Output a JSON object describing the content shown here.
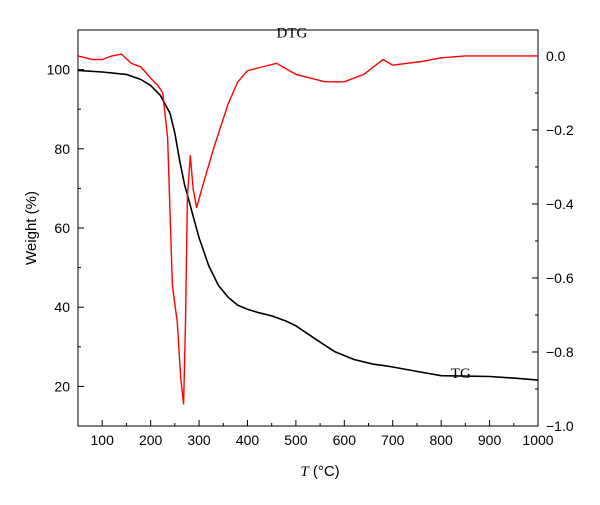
{
  "chart_data": {
    "type": "line",
    "title": "",
    "xlabel": "T (°C)",
    "ylabel_left": "Weight (%)",
    "ylabel_right": "",
    "xlim": [
      50,
      1000
    ],
    "ylim_left": [
      10,
      110
    ],
    "ylim_right": [
      -1.0,
      0.07
    ],
    "xticks": [
      100,
      200,
      300,
      400,
      500,
      600,
      700,
      800,
      900,
      1000
    ],
    "yticks_left": [
      20,
      40,
      60,
      80,
      100
    ],
    "yticks_right": [
      0.0,
      -0.2,
      -0.4,
      -0.6,
      -0.8,
      -1.0
    ],
    "xtick_labels": [
      "100",
      "200",
      "300",
      "400",
      "500",
      "600",
      "700",
      "800",
      "900",
      "1000"
    ],
    "ytick_left_labels": [
      "20",
      "40",
      "60",
      "80",
      "100"
    ],
    "ytick_right_labels": [
      "0.0",
      "−0.2",
      "−0.4",
      "−0.6",
      "−0.8",
      "−1.0"
    ],
    "grid": false,
    "series": [
      {
        "name": "TG",
        "axis": "left",
        "color": "#000000",
        "x": [
          50,
          100,
          150,
          180,
          200,
          220,
          240,
          250,
          260,
          270,
          280,
          290,
          300,
          320,
          340,
          360,
          380,
          400,
          420,
          450,
          480,
          500,
          540,
          580,
          620,
          660,
          680,
          700,
          750,
          800,
          850,
          900,
          950,
          1000
        ],
        "y": [
          99.8,
          99.4,
          98.8,
          97.5,
          96.0,
          93.5,
          89.0,
          84.0,
          77.0,
          71.0,
          66.5,
          62.0,
          57.5,
          50.5,
          45.5,
          42.5,
          40.5,
          39.5,
          38.7,
          37.8,
          36.5,
          35.3,
          32.0,
          28.8,
          26.8,
          25.6,
          25.3,
          24.9,
          23.8,
          22.7,
          22.6,
          22.5,
          22.1,
          21.6
        ]
      },
      {
        "name": "DTG",
        "axis": "right",
        "color": "#ff0000",
        "x": [
          50,
          80,
          100,
          120,
          140,
          160,
          180,
          200,
          215,
          225,
          235,
          245,
          250,
          255,
          262,
          268,
          272,
          276,
          282,
          288,
          295,
          310,
          330,
          360,
          380,
          400,
          430,
          460,
          500,
          530,
          560,
          600,
          640,
          670,
          680,
          700,
          730,
          760,
          800,
          850,
          900,
          950,
          1000
        ],
        "y": [
          0.0,
          -0.01,
          -0.01,
          0.0,
          0.005,
          -0.02,
          -0.03,
          -0.06,
          -0.08,
          -0.1,
          -0.22,
          -0.62,
          -0.67,
          -0.72,
          -0.87,
          -0.94,
          -0.72,
          -0.38,
          -0.27,
          -0.36,
          -0.41,
          -0.34,
          -0.25,
          -0.13,
          -0.07,
          -0.04,
          -0.03,
          -0.02,
          -0.05,
          -0.06,
          -0.07,
          -0.07,
          -0.05,
          -0.02,
          -0.01,
          -0.025,
          -0.02,
          -0.015,
          -0.005,
          0.0,
          0.0,
          0.0,
          0.0
        ]
      }
    ],
    "annotations": [
      {
        "text": "DTG",
        "x": 460,
        "y_axis": "right",
        "y": 0.05
      },
      {
        "text": "TG",
        "x": 820,
        "y_axis": "right",
        "y": -0.87
      }
    ]
  }
}
